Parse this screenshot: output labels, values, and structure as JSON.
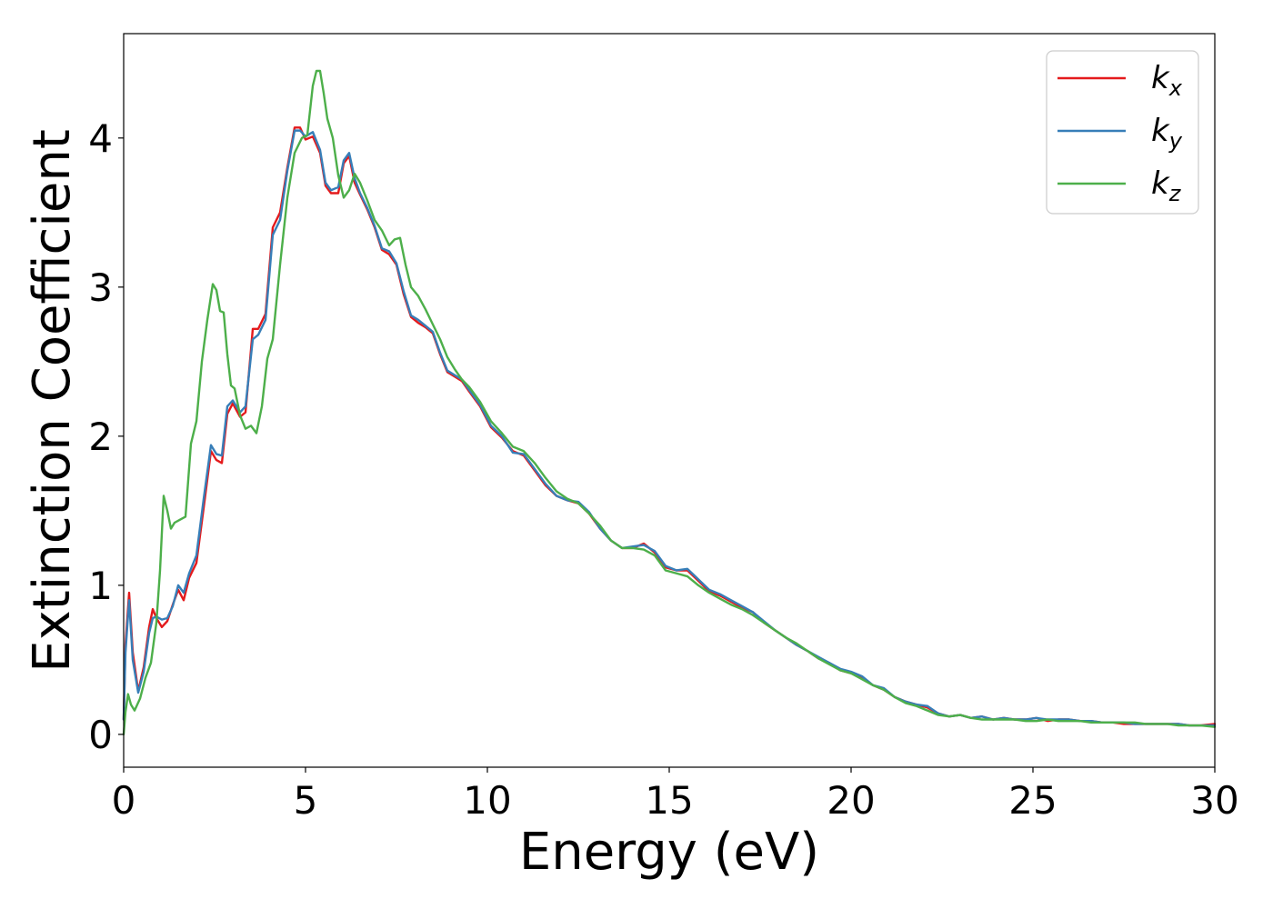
{
  "chart_data": {
    "type": "line",
    "title": "",
    "xlabel": "Energy (eV)",
    "ylabel": "Extinction Coefficient",
    "xlim": [
      0,
      30
    ],
    "ylim": [
      -0.22,
      4.7
    ],
    "xticks": [
      0,
      5,
      10,
      15,
      20,
      25,
      30
    ],
    "yticks": [
      0,
      1,
      2,
      3,
      4
    ],
    "grid": false,
    "legend_position": "top-right",
    "series": [
      {
        "name": "k_x",
        "legend_base": "k",
        "legend_sub": "x",
        "color": "#e41a1c",
        "x": [
          0,
          0.05,
          0.15,
          0.25,
          0.4,
          0.55,
          0.7,
          0.8,
          0.9,
          1.05,
          1.2,
          1.35,
          1.5,
          1.65,
          1.8,
          2.0,
          2.2,
          2.4,
          2.55,
          2.7,
          2.85,
          3.0,
          3.2,
          3.35,
          3.55,
          3.7,
          3.9,
          4.1,
          4.3,
          4.5,
          4.7,
          4.85,
          5.0,
          5.2,
          5.4,
          5.55,
          5.7,
          5.9,
          6.05,
          6.2,
          6.35,
          6.5,
          6.7,
          6.9,
          7.1,
          7.3,
          7.5,
          7.7,
          7.9,
          8.1,
          8.3,
          8.5,
          8.7,
          8.9,
          9.1,
          9.3,
          9.5,
          9.8,
          10.1,
          10.4,
          10.7,
          11.0,
          11.3,
          11.6,
          11.9,
          12.2,
          12.5,
          12.8,
          13.1,
          13.4,
          13.7,
          14.0,
          14.3,
          14.6,
          14.9,
          15.2,
          15.5,
          15.8,
          16.1,
          16.4,
          16.7,
          17.0,
          17.3,
          17.6,
          17.9,
          18.2,
          18.5,
          18.8,
          19.1,
          19.4,
          19.7,
          20.0,
          20.3,
          20.6,
          20.9,
          21.2,
          21.5,
          21.8,
          22.1,
          22.4,
          22.7,
          23.0,
          23.3,
          23.6,
          23.9,
          24.2,
          24.5,
          24.8,
          25.1,
          25.4,
          25.7,
          26.0,
          26.3,
          26.6,
          26.9,
          27.2,
          27.5,
          27.8,
          28.1,
          28.4,
          28.7,
          29.0,
          29.3,
          29.6,
          30.0
        ],
        "y": [
          0.1,
          0.6,
          0.95,
          0.55,
          0.29,
          0.45,
          0.72,
          0.84,
          0.78,
          0.72,
          0.76,
          0.87,
          0.97,
          0.9,
          1.05,
          1.15,
          1.52,
          1.9,
          1.84,
          1.82,
          2.15,
          2.22,
          2.13,
          2.16,
          2.72,
          2.72,
          2.82,
          3.4,
          3.5,
          3.8,
          4.07,
          4.07,
          3.99,
          4.01,
          3.9,
          3.68,
          3.63,
          3.63,
          3.83,
          3.88,
          3.7,
          3.62,
          3.52,
          3.4,
          3.25,
          3.22,
          3.15,
          2.95,
          2.8,
          2.76,
          2.73,
          2.69,
          2.55,
          2.43,
          2.4,
          2.37,
          2.3,
          2.2,
          2.06,
          1.99,
          1.9,
          1.87,
          1.77,
          1.67,
          1.6,
          1.57,
          1.55,
          1.48,
          1.38,
          1.3,
          1.25,
          1.25,
          1.28,
          1.22,
          1.12,
          1.1,
          1.1,
          1.03,
          0.96,
          0.93,
          0.89,
          0.85,
          0.82,
          0.75,
          0.7,
          0.65,
          0.6,
          0.56,
          0.51,
          0.48,
          0.43,
          0.41,
          0.38,
          0.33,
          0.3,
          0.25,
          0.22,
          0.2,
          0.18,
          0.14,
          0.12,
          0.13,
          0.11,
          0.12,
          0.1,
          0.11,
          0.1,
          0.1,
          0.11,
          0.09,
          0.1,
          0.1,
          0.09,
          0.09,
          0.08,
          0.08,
          0.07,
          0.07,
          0.07,
          0.07,
          0.07,
          0.07,
          0.06,
          0.06,
          0.07
        ]
      },
      {
        "name": "k_y",
        "legend_base": "k",
        "legend_sub": "y",
        "color": "#377eb8",
        "x": [
          0,
          0.05,
          0.15,
          0.25,
          0.4,
          0.55,
          0.7,
          0.8,
          0.9,
          1.05,
          1.2,
          1.35,
          1.5,
          1.65,
          1.8,
          2.0,
          2.2,
          2.4,
          2.55,
          2.7,
          2.85,
          3.0,
          3.2,
          3.35,
          3.55,
          3.7,
          3.9,
          4.1,
          4.3,
          4.5,
          4.7,
          4.85,
          5.0,
          5.2,
          5.4,
          5.55,
          5.7,
          5.9,
          6.05,
          6.2,
          6.35,
          6.5,
          6.7,
          6.9,
          7.1,
          7.3,
          7.5,
          7.7,
          7.9,
          8.1,
          8.3,
          8.5,
          8.7,
          8.9,
          9.1,
          9.3,
          9.5,
          9.8,
          10.1,
          10.4,
          10.7,
          11.0,
          11.3,
          11.6,
          11.9,
          12.2,
          12.5,
          12.8,
          13.1,
          13.4,
          13.7,
          14.0,
          14.3,
          14.6,
          14.9,
          15.2,
          15.5,
          15.8,
          16.1,
          16.4,
          16.7,
          17.0,
          17.3,
          17.6,
          17.9,
          18.2,
          18.5,
          18.8,
          19.1,
          19.4,
          19.7,
          20.0,
          20.3,
          20.6,
          20.9,
          21.2,
          21.5,
          21.8,
          22.1,
          22.4,
          22.7,
          23.0,
          23.3,
          23.6,
          23.9,
          24.2,
          24.5,
          24.8,
          25.1,
          25.4,
          25.7,
          26.0,
          26.3,
          26.6,
          26.9,
          27.2,
          27.5,
          27.8,
          28.1,
          28.4,
          28.7,
          29.0,
          29.3,
          29.6,
          30.0
        ],
        "y": [
          0.1,
          0.55,
          0.9,
          0.5,
          0.28,
          0.42,
          0.68,
          0.78,
          0.79,
          0.77,
          0.78,
          0.86,
          1.0,
          0.95,
          1.08,
          1.2,
          1.58,
          1.94,
          1.88,
          1.87,
          2.2,
          2.24,
          2.16,
          2.2,
          2.65,
          2.68,
          2.78,
          3.35,
          3.45,
          3.78,
          4.05,
          4.05,
          4.01,
          4.04,
          3.92,
          3.7,
          3.65,
          3.67,
          3.85,
          3.9,
          3.73,
          3.63,
          3.53,
          3.41,
          3.26,
          3.24,
          3.16,
          2.97,
          2.81,
          2.78,
          2.74,
          2.7,
          2.56,
          2.44,
          2.41,
          2.38,
          2.31,
          2.21,
          2.07,
          2.0,
          1.89,
          1.88,
          1.78,
          1.68,
          1.6,
          1.57,
          1.56,
          1.49,
          1.38,
          1.3,
          1.25,
          1.26,
          1.27,
          1.23,
          1.13,
          1.1,
          1.11,
          1.04,
          0.97,
          0.94,
          0.9,
          0.86,
          0.82,
          0.76,
          0.7,
          0.65,
          0.6,
          0.56,
          0.52,
          0.48,
          0.44,
          0.42,
          0.39,
          0.33,
          0.31,
          0.25,
          0.22,
          0.2,
          0.19,
          0.14,
          0.12,
          0.13,
          0.11,
          0.12,
          0.1,
          0.11,
          0.1,
          0.1,
          0.11,
          0.1,
          0.1,
          0.1,
          0.09,
          0.09,
          0.08,
          0.08,
          0.08,
          0.07,
          0.07,
          0.07,
          0.07,
          0.07,
          0.06,
          0.06,
          0.06
        ]
      },
      {
        "name": "k_z",
        "legend_base": "k",
        "legend_sub": "z",
        "color": "#4daf4a",
        "x": [
          0,
          0.05,
          0.12,
          0.2,
          0.3,
          0.45,
          0.6,
          0.75,
          0.9,
          1.0,
          1.1,
          1.2,
          1.3,
          1.4,
          1.55,
          1.7,
          1.85,
          2.0,
          2.15,
          2.3,
          2.45,
          2.55,
          2.65,
          2.75,
          2.85,
          2.95,
          3.05,
          3.2,
          3.35,
          3.5,
          3.65,
          3.8,
          3.95,
          4.1,
          4.3,
          4.5,
          4.7,
          4.9,
          5.05,
          5.2,
          5.3,
          5.4,
          5.5,
          5.6,
          5.75,
          5.9,
          6.05,
          6.2,
          6.35,
          6.5,
          6.7,
          6.9,
          7.1,
          7.3,
          7.45,
          7.6,
          7.75,
          7.9,
          8.1,
          8.3,
          8.5,
          8.7,
          8.9,
          9.1,
          9.3,
          9.5,
          9.8,
          10.1,
          10.4,
          10.7,
          11.0,
          11.3,
          11.6,
          11.9,
          12.2,
          12.5,
          12.8,
          13.1,
          13.4,
          13.7,
          14.0,
          14.3,
          14.6,
          14.9,
          15.2,
          15.5,
          15.8,
          16.1,
          16.4,
          16.7,
          17.0,
          17.3,
          17.6,
          17.9,
          18.2,
          18.5,
          18.8,
          19.1,
          19.4,
          19.7,
          20.0,
          20.3,
          20.6,
          20.9,
          21.2,
          21.5,
          21.8,
          22.1,
          22.4,
          22.7,
          23.0,
          23.3,
          23.6,
          23.9,
          24.2,
          24.5,
          24.8,
          25.1,
          25.4,
          25.7,
          26.0,
          26.3,
          26.6,
          26.9,
          27.2,
          27.5,
          27.8,
          28.1,
          28.4,
          28.7,
          29.0,
          29.3,
          29.6,
          30.0
        ],
        "y": [
          0.0,
          0.15,
          0.27,
          0.2,
          0.16,
          0.24,
          0.38,
          0.48,
          0.75,
          1.1,
          1.6,
          1.5,
          1.38,
          1.42,
          1.44,
          1.46,
          1.95,
          2.1,
          2.5,
          2.78,
          3.02,
          2.98,
          2.84,
          2.83,
          2.55,
          2.34,
          2.32,
          2.14,
          2.05,
          2.07,
          2.02,
          2.2,
          2.52,
          2.65,
          3.15,
          3.6,
          3.9,
          4.0,
          4.02,
          4.35,
          4.45,
          4.45,
          4.3,
          4.13,
          4.0,
          3.75,
          3.6,
          3.65,
          3.76,
          3.7,
          3.58,
          3.45,
          3.38,
          3.28,
          3.32,
          3.33,
          3.15,
          3.0,
          2.94,
          2.85,
          2.75,
          2.65,
          2.53,
          2.45,
          2.38,
          2.33,
          2.23,
          2.1,
          2.02,
          1.93,
          1.9,
          1.82,
          1.72,
          1.63,
          1.58,
          1.55,
          1.48,
          1.4,
          1.3,
          1.25,
          1.25,
          1.24,
          1.2,
          1.1,
          1.08,
          1.06,
          1.0,
          0.95,
          0.91,
          0.87,
          0.84,
          0.8,
          0.75,
          0.7,
          0.65,
          0.61,
          0.56,
          0.51,
          0.47,
          0.43,
          0.41,
          0.37,
          0.33,
          0.3,
          0.25,
          0.21,
          0.19,
          0.16,
          0.13,
          0.12,
          0.13,
          0.11,
          0.1,
          0.1,
          0.1,
          0.1,
          0.09,
          0.09,
          0.1,
          0.09,
          0.09,
          0.09,
          0.08,
          0.08,
          0.08,
          0.08,
          0.08,
          0.07,
          0.07,
          0.07,
          0.06,
          0.06,
          0.06,
          0.05
        ]
      }
    ]
  }
}
